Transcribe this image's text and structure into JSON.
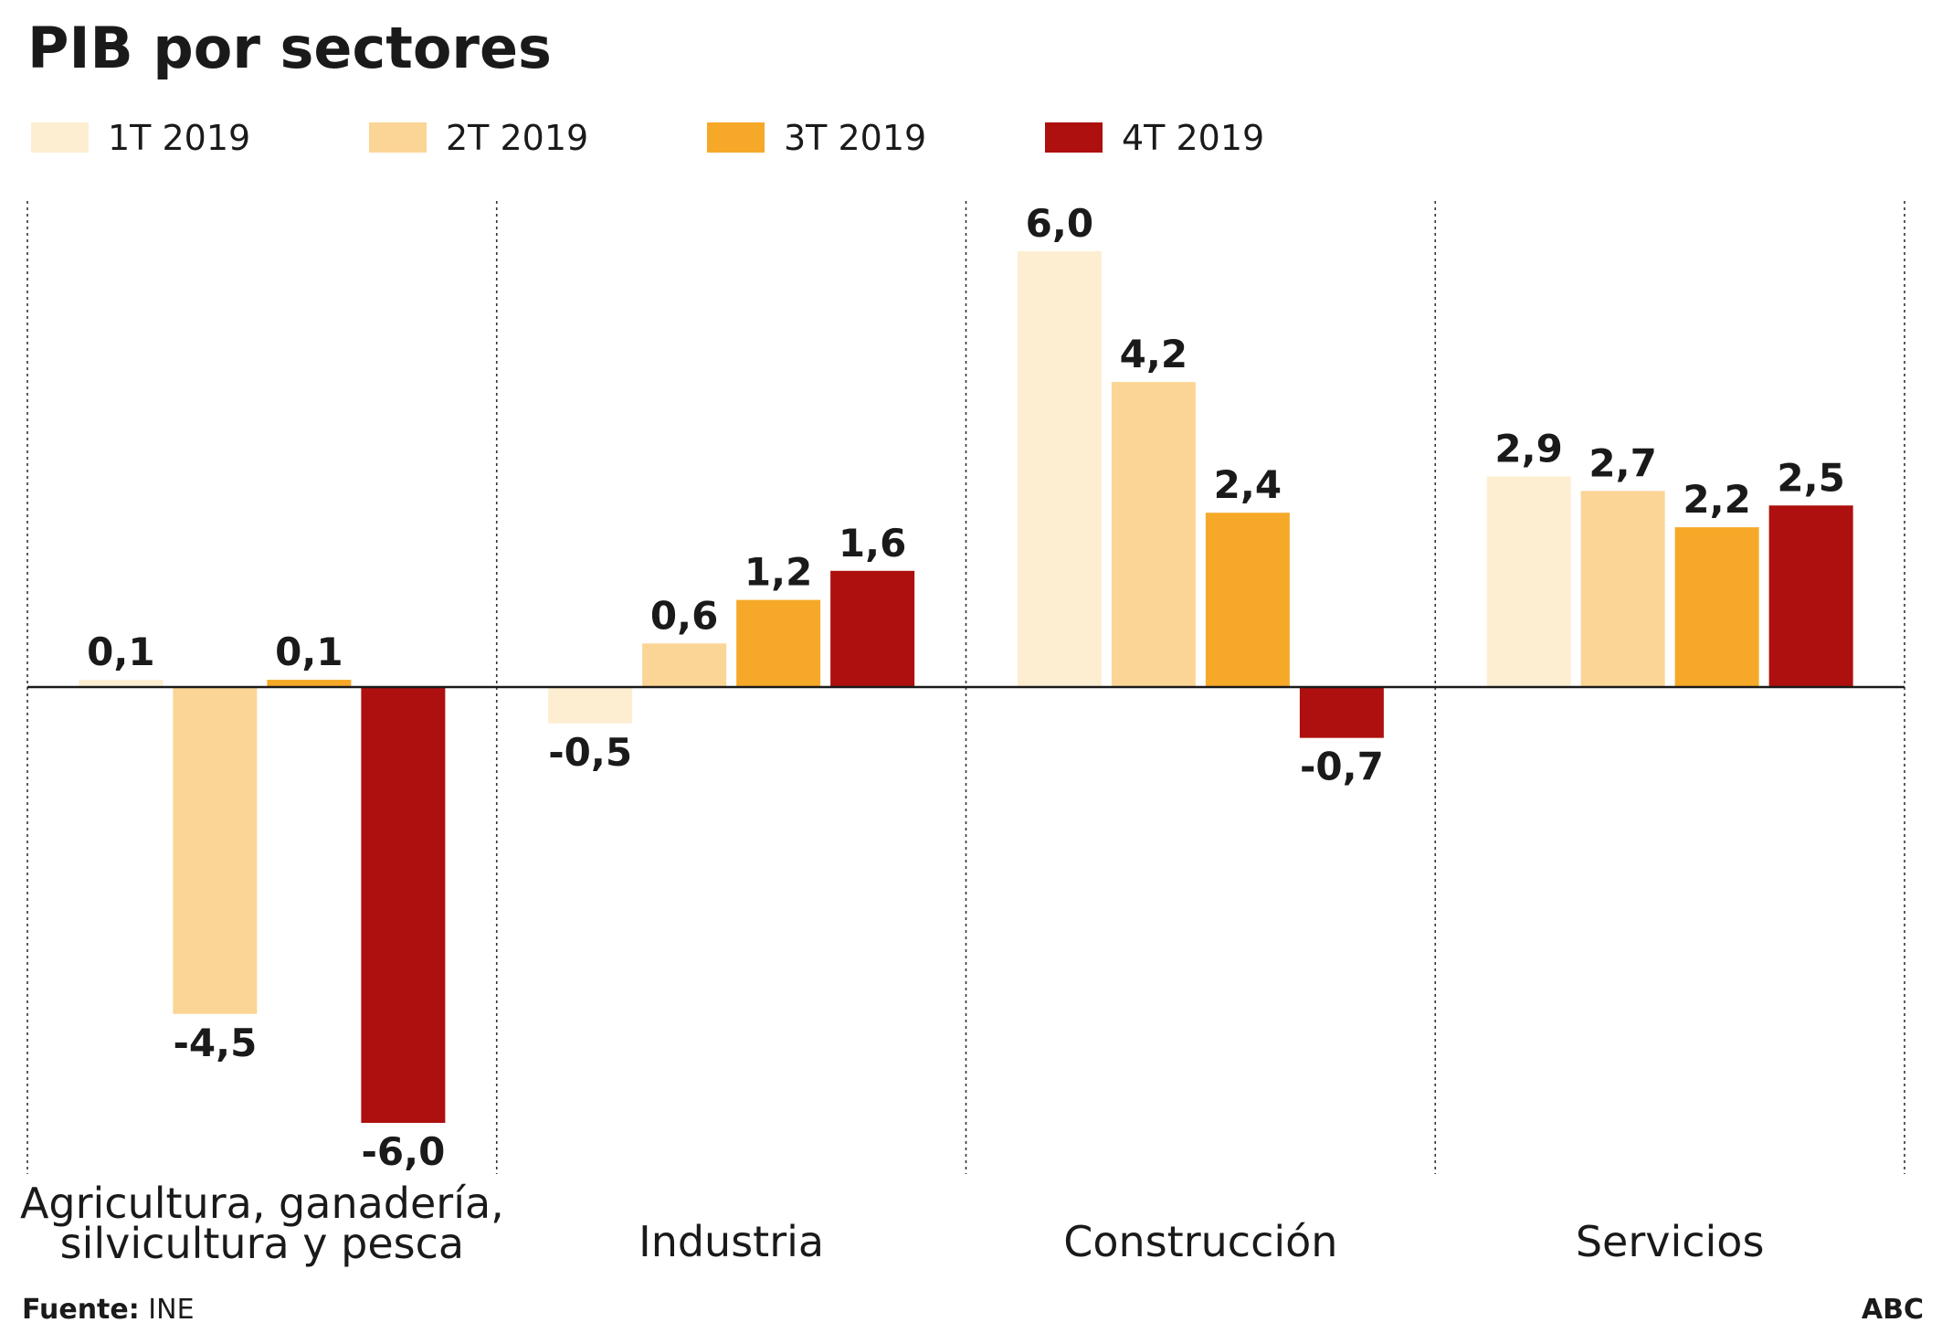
{
  "chart_data": {
    "type": "bar",
    "title": "PIB por sectores",
    "categories": [
      [
        "Agricultura, ganadería,",
        "silvicultura y pesca"
      ],
      [
        "Industria"
      ],
      [
        "Construcción"
      ],
      [
        "Servicios"
      ]
    ],
    "series": [
      {
        "name": "1T 2019",
        "color": "#fdeed2",
        "values": [
          0.1,
          -0.5,
          6.0,
          2.9
        ],
        "labels": [
          "0,1",
          "-0,5",
          "6,0",
          "2,9"
        ]
      },
      {
        "name": "2T 2019",
        "color": "#fbd595",
        "values": [
          -4.5,
          0.6,
          4.2,
          2.7
        ],
        "labels": [
          "-4,5",
          "0,6",
          "4,2",
          "2,7"
        ]
      },
      {
        "name": "3T 2019",
        "color": "#f6a928",
        "values": [
          0.1,
          1.2,
          2.4,
          2.2
        ],
        "labels": [
          "0,1",
          "1,2",
          "2,4",
          "2,2"
        ]
      },
      {
        "name": "4T 2019",
        "color": "#ad100e",
        "values": [
          -6.0,
          1.6,
          -0.7,
          2.5
        ],
        "labels": [
          "-6,0",
          "1,6",
          "-0,7",
          "2,5"
        ]
      }
    ],
    "ylim": [
      -6.7,
      6.8
    ],
    "xlabel": "",
    "ylabel": "",
    "grid": false,
    "legend": "top-left"
  },
  "footer": {
    "source_label": "Fuente:",
    "source_value": "INE",
    "brand": "ABC"
  }
}
